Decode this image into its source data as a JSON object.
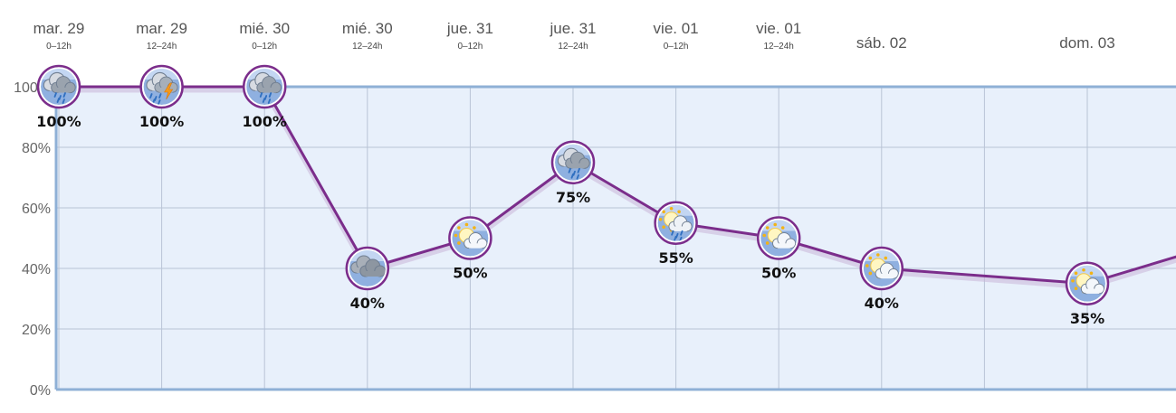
{
  "chart_data": {
    "type": "line",
    "ylim": [
      0,
      100
    ],
    "y_ticks": [
      "0%",
      "20%",
      "40%",
      "60%",
      "80%",
      "100%"
    ],
    "y_tick_values": [
      0,
      20,
      40,
      60,
      80,
      100
    ],
    "grid": true,
    "categories": [
      {
        "day": "mar. 29",
        "period": "0–12h"
      },
      {
        "day": "mar. 29",
        "period": "12–24h"
      },
      {
        "day": "mié. 30",
        "period": "0–12h"
      },
      {
        "day": "mié. 30",
        "period": "12–24h"
      },
      {
        "day": "jue. 31",
        "period": "0–12h"
      },
      {
        "day": "jue. 31",
        "period": "12–24h"
      },
      {
        "day": "vie. 01",
        "period": "0–12h"
      },
      {
        "day": "vie. 01",
        "period": "12–24h"
      },
      {
        "day": "sáb. 02",
        "period": ""
      },
      {
        "day": "dom. 03",
        "period": ""
      }
    ],
    "x": [
      0,
      1,
      2,
      3,
      4,
      5,
      6,
      7,
      8,
      10
    ],
    "values": [
      100,
      100,
      100,
      40,
      50,
      75,
      55,
      50,
      40,
      35
    ],
    "labels": [
      "100%",
      "100%",
      "100%",
      "40%",
      "50%",
      "75%",
      "55%",
      "50%",
      "40%",
      "35%"
    ],
    "icons": [
      "rain-icon",
      "thunderstorm-icon",
      "rain-icon",
      "cloudy-icon",
      "partly-cloudy-icon",
      "rain-icon",
      "partly-cloudy-rain-icon",
      "partly-cloudy-icon",
      "partly-cloudy-icon",
      "partly-cloudy-icon"
    ],
    "trailing_value": 44
  },
  "colors": {
    "line": "#7b2d8b",
    "plot_background": "#e8f0fb",
    "grid": "#b9c4d6",
    "axis": "#8fb0d6"
  }
}
